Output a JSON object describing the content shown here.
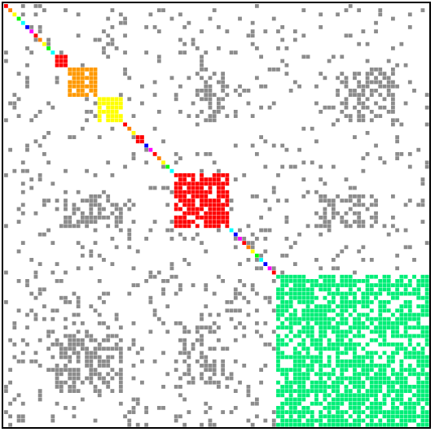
{
  "chart_data": {
    "type": "heatmap",
    "title": "",
    "xlabel": "",
    "ylabel": "",
    "n": 100,
    "grid": false,
    "legend": "none",
    "background_color": "#ffffff",
    "frame_color": "#000000",
    "offdiag_color": "#8c8c8c",
    "diagonal_palette": [
      "#ff0000",
      "#ff8000",
      "#ffff00",
      "#00ff00",
      "#00ffff",
      "#0000ff",
      "#ff00ff"
    ],
    "clusters": [
      {
        "start": 12,
        "end": 15,
        "color": "#ff0000",
        "density": 0.95
      },
      {
        "start": 15,
        "end": 22,
        "color": "#ff9900",
        "density": 0.9
      },
      {
        "start": 22,
        "end": 28,
        "color": "#ffff00",
        "density": 0.88
      },
      {
        "start": 31,
        "end": 33,
        "color": "#ff0000",
        "density": 0.9
      },
      {
        "start": 40,
        "end": 53,
        "color": "#ff0000",
        "density": 0.78
      },
      {
        "start": 64,
        "end": 100,
        "color": "#00ee77",
        "density": 0.72
      }
    ],
    "offdiag_blocks": [
      {
        "rows": [
          0,
          40
        ],
        "cols": [
          0,
          100
        ],
        "density": 0.08
      },
      {
        "rows": [
          40,
          64
        ],
        "cols": [
          0,
          100
        ],
        "density": 0.1
      },
      {
        "rows": [
          64,
          100
        ],
        "cols": [
          0,
          64
        ],
        "density": 0.14
      },
      {
        "rows": [
          15,
          28
        ],
        "cols": [
          45,
          52
        ],
        "density": 0.45
      },
      {
        "rows": [
          15,
          28
        ],
        "cols": [
          78,
          92
        ],
        "density": 0.45
      },
      {
        "rows": [
          45,
          53
        ],
        "cols": [
          12,
          28
        ],
        "density": 0.45
      },
      {
        "rows": [
          45,
          53
        ],
        "cols": [
          74,
          88
        ],
        "density": 0.4
      },
      {
        "rows": [
          78,
          92
        ],
        "cols": [
          12,
          28
        ],
        "density": 0.45
      },
      {
        "rows": [
          76,
          90
        ],
        "cols": [
          42,
          52
        ],
        "density": 0.4
      }
    ],
    "seed": 7
  }
}
